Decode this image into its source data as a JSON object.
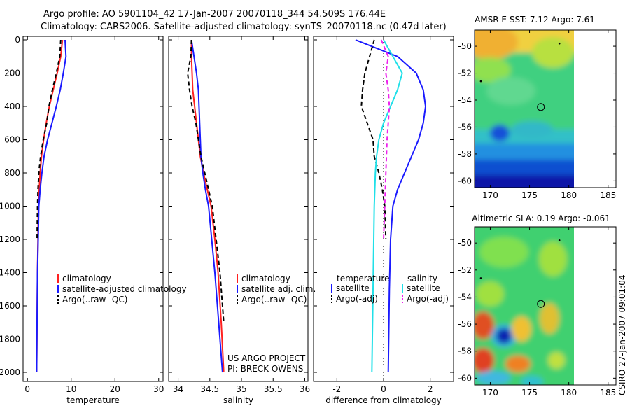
{
  "header": {
    "line1": "Argo profile: AO 5901104_42 17-Jan-2007 20070118_344 54.509S 176.44E",
    "line2": "Climatology: CARS2006. Satellite-adjusted climatology: synTS_20070118.nc (0.47d later)"
  },
  "credit": {
    "line1": "US ARGO PROJECT",
    "line2": "PI: BRECK OWENS",
    "stamp": "CSIRO 27-Jan-2007 09:01:04"
  },
  "colors": {
    "climatology": "#ff2020",
    "satellite": "#1a1aff",
    "argo": "#000000",
    "satellite_salinity": "#20e0e8",
    "argo_salinity": "#ee20ee"
  },
  "chart_data": [
    {
      "type": "line",
      "xlabel": "temperature",
      "ylabel": "",
      "xlim": [
        -1,
        31
      ],
      "ylim": [
        2050,
        0
      ],
      "xticks": [
        0,
        10,
        20,
        30
      ],
      "yticks": [
        0,
        200,
        400,
        600,
        800,
        1000,
        1200,
        1400,
        1600,
        1800,
        2000
      ],
      "legend": {
        "position": "lower-right",
        "entries": [
          "climatology",
          "satellite-adjusted climatology",
          "Argo(..raw -QC)"
        ]
      },
      "series": [
        {
          "name": "climatology",
          "style": "solid",
          "color": "#ff2020",
          "x": [
            8.0,
            7.6,
            6.8,
            5.9,
            5.0,
            4.3,
            3.7,
            3.2,
            2.9,
            2.7,
            2.5,
            2.4,
            2.3,
            2.2,
            2.1
          ],
          "y": [
            0,
            100,
            200,
            300,
            400,
            500,
            600,
            700,
            800,
            900,
            1000,
            1200,
            1400,
            1700,
            2000
          ]
        },
        {
          "name": "satellite-adjusted climatology",
          "style": "solid",
          "color": "#1a1aff",
          "x": [
            8.6,
            8.8,
            8.2,
            7.5,
            6.6,
            5.6,
            4.6,
            3.8,
            3.3,
            2.9,
            2.6,
            2.45,
            2.3,
            2.2,
            2.1
          ],
          "y": [
            0,
            100,
            200,
            300,
            400,
            500,
            600,
            700,
            800,
            900,
            1000,
            1200,
            1400,
            1700,
            2000
          ]
        },
        {
          "name": "Argo(..raw -QC)",
          "style": "dashed",
          "color": "#000000",
          "x": [
            7.6,
            7.4,
            6.6,
            5.7,
            4.9,
            4.4,
            3.6,
            3.0,
            2.6,
            2.4,
            2.3,
            2.2
          ],
          "y": [
            0,
            100,
            200,
            300,
            400,
            500,
            600,
            700,
            800,
            900,
            1000,
            1200
          ]
        }
      ]
    },
    {
      "type": "line",
      "xlabel": "salinity",
      "ylabel": "",
      "xlim": [
        33.85,
        36.05
      ],
      "ylim": [
        2050,
        0
      ],
      "xticks": [
        34,
        34.5,
        35,
        35.5,
        36
      ],
      "legend": {
        "position": "lower-right",
        "entries": [
          "climatology",
          "satellite adj. clim.",
          "Argo(..raw -QC)"
        ]
      },
      "series": [
        {
          "name": "climatology",
          "style": "solid",
          "color": "#ff2020",
          "x": [
            34.21,
            34.21,
            34.22,
            34.23,
            34.26,
            34.29,
            34.32,
            34.35,
            34.4,
            34.46,
            34.52,
            34.58,
            34.63,
            34.68,
            34.72
          ],
          "y": [
            0,
            100,
            200,
            300,
            400,
            500,
            600,
            700,
            800,
            900,
            1000,
            1200,
            1400,
            1700,
            2000
          ]
        },
        {
          "name": "satellite adj. clim.",
          "style": "solid",
          "color": "#1a1aff",
          "x": [
            34.21,
            34.25,
            34.29,
            34.32,
            34.33,
            34.34,
            34.35,
            34.36,
            34.39,
            34.43,
            34.48,
            34.53,
            34.58,
            34.64,
            34.7
          ],
          "y": [
            0,
            100,
            200,
            300,
            400,
            500,
            600,
            700,
            800,
            900,
            1000,
            1200,
            1400,
            1700,
            2000
          ]
        },
        {
          "name": "Argo(..raw -QC)",
          "style": "dashed",
          "color": "#000000",
          "x": [
            34.21,
            34.2,
            34.15,
            34.18,
            34.22,
            34.28,
            34.32,
            34.36,
            34.42,
            34.48,
            34.54,
            34.6,
            34.66,
            34.72
          ],
          "y": [
            0,
            100,
            200,
            300,
            400,
            500,
            600,
            700,
            800,
            900,
            1000,
            1200,
            1400,
            1700
          ]
        }
      ]
    },
    {
      "type": "line",
      "xlabel": "difference from climatology",
      "ylabel": "",
      "xlim": [
        -3,
        3
      ],
      "ylim": [
        2050,
        0
      ],
      "xticks": [
        -2,
        0,
        2
      ],
      "legend": {
        "position": "lower-right",
        "group_titles": [
          "temperature",
          "salinity"
        ],
        "entries": [
          "satellite",
          "Argo(-adj)",
          "satellite",
          "Argo(-adj)"
        ]
      },
      "series": [
        {
          "name": "temperature satellite",
          "style": "solid",
          "color": "#1a1aff",
          "x": [
            -1.2,
            0.6,
            1.4,
            1.7,
            1.8,
            1.7,
            1.5,
            1.2,
            0.9,
            0.6,
            0.4,
            0.3,
            0.25,
            0.2
          ],
          "y": [
            0,
            100,
            200,
            300,
            400,
            500,
            600,
            700,
            800,
            900,
            1000,
            1200,
            1500,
            2000
          ]
        },
        {
          "name": "temperature Argo(-adj)",
          "style": "dashed",
          "color": "#000000",
          "x": [
            -0.4,
            -0.6,
            -0.8,
            -0.9,
            -0.95,
            -0.7,
            -0.45,
            -0.4,
            -0.2,
            -0.05,
            0.05,
            0.1
          ],
          "y": [
            0,
            100,
            200,
            300,
            400,
            500,
            600,
            700,
            800,
            900,
            1000,
            1200
          ]
        },
        {
          "name": "salinity satellite",
          "style": "solid",
          "color": "#20e0e8",
          "x": [
            0.0,
            0.4,
            0.8,
            0.6,
            0.3,
            0.0,
            -0.2,
            -0.3,
            -0.35,
            -0.4,
            -0.45,
            -0.5
          ],
          "y": [
            0,
            100,
            200,
            300,
            400,
            500,
            600,
            700,
            800,
            1000,
            1500,
            2000
          ]
        },
        {
          "name": "salinity Argo(-adj)",
          "style": "dashed",
          "color": "#ee20ee",
          "x": [
            -0.1,
            0.2,
            0.1,
            0.2,
            0.25,
            0.2,
            0.15,
            0.1,
            0.05,
            0.0
          ],
          "y": [
            0,
            100,
            200,
            300,
            400,
            500,
            600,
            800,
            1000,
            1200
          ]
        }
      ]
    },
    {
      "type": "heatmap",
      "title": "AMSR-E SST: 7.12  Argo: 7.61",
      "xlim": [
        168,
        186
      ],
      "ylim": [
        -60.5,
        -48.8
      ],
      "xticks": [
        170,
        175,
        180,
        185
      ],
      "yticks": [
        -50,
        -52,
        -54,
        -56,
        -58,
        -60
      ],
      "data_extent": {
        "x": [
          168,
          180
        ],
        "y": [
          -60.5,
          -48.8
        ]
      },
      "markers": [
        {
          "type": "profile",
          "lon": 176.44,
          "lat": -54.51
        },
        {
          "type": "dot",
          "lon": 168.8,
          "lat": -52.6
        },
        {
          "type": "dot",
          "lon": 178.8,
          "lat": -49.8
        }
      ]
    },
    {
      "type": "heatmap",
      "title": "Altimetric SLA: 0.19  Argo: -0.061",
      "xlim": [
        168,
        186
      ],
      "ylim": [
        -60.5,
        -48.8
      ],
      "xticks": [
        170,
        175,
        180,
        185
      ],
      "yticks": [
        -50,
        -52,
        -54,
        -56,
        -58,
        -60
      ],
      "data_extent": {
        "x": [
          168,
          180
        ],
        "y": [
          -60.5,
          -48.8
        ]
      },
      "markers": [
        {
          "type": "profile",
          "lon": 176.44,
          "lat": -54.51
        },
        {
          "type": "dot",
          "lon": 168.8,
          "lat": -52.6
        },
        {
          "type": "dot",
          "lon": 178.8,
          "lat": -49.8
        }
      ]
    }
  ]
}
